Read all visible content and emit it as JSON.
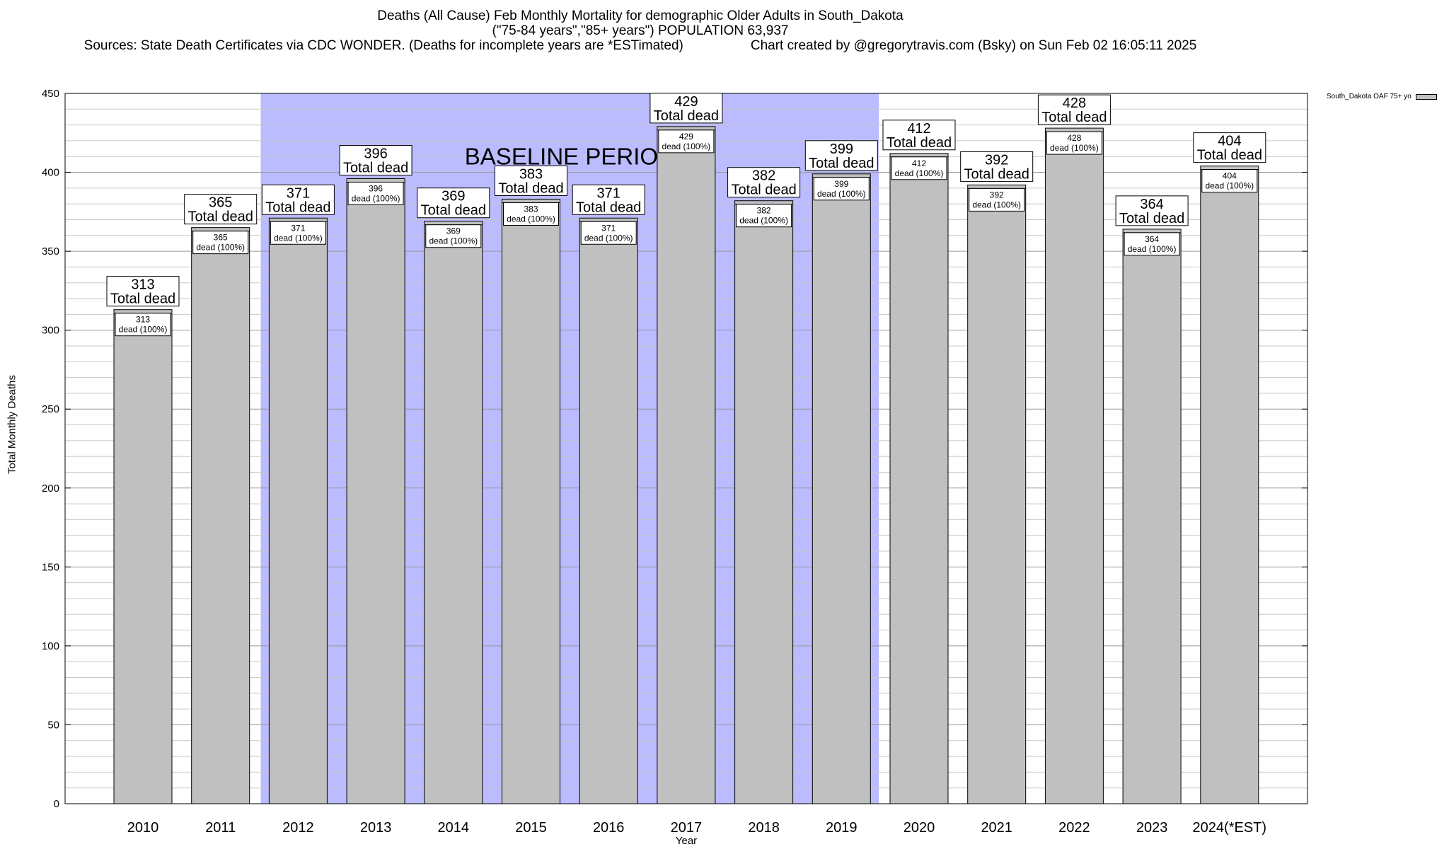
{
  "header": {
    "title_line1": "Deaths (All Cause) Feb Monthly Mortality for demographic Older Adults in South_Dakota",
    "title_line2": "(\"75-84 years\",\"85+ years\") POPULATION 63,937",
    "sources": "Sources: State Death Certificates via CDC WONDER. (Deaths for incomplete years are *ESTimated)",
    "credit": "Chart created by @gregorytravis.com (Bsky) on Sun Feb 02 16:05:11 2025"
  },
  "chart_data": {
    "type": "bar",
    "title": "Deaths (All Cause) Feb Monthly Mortality for demographic Older Adults in South_Dakota",
    "xlabel": "Year",
    "ylabel": "Total Monthly Deaths",
    "categories": [
      "2010",
      "2011",
      "2012",
      "2013",
      "2014",
      "2015",
      "2016",
      "2017",
      "2018",
      "2019",
      "2020",
      "2021",
      "2022",
      "2023",
      "2024(*EST)"
    ],
    "series": [
      {
        "name": "South_Dakota OAF 75+ yo",
        "values": [
          313,
          365,
          371,
          396,
          369,
          383,
          371,
          429,
          382,
          399,
          412,
          392,
          428,
          364,
          404
        ],
        "color": "#c0c0c0"
      }
    ],
    "ylim": [
      0,
      450
    ],
    "yticks": [
      0,
      50,
      100,
      150,
      200,
      250,
      300,
      350,
      400,
      450
    ],
    "grid": true,
    "legend_position": "top-right",
    "top_label_text": "Total dead",
    "inner_label_text": "dead (100%)",
    "baseline_period": {
      "label": "BASELINE PERIOD",
      "from": "2012",
      "to": "2019",
      "color": "#bbbbff"
    }
  }
}
